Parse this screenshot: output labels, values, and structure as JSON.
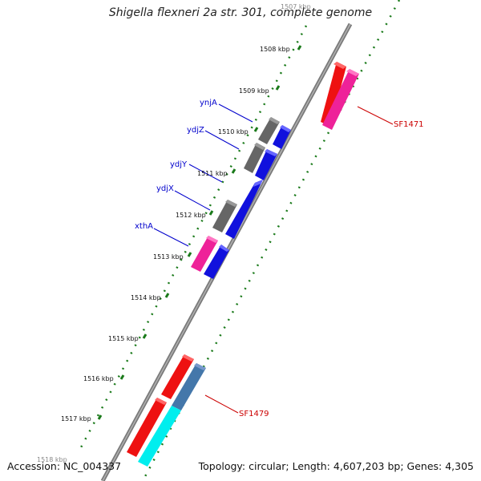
{
  "title": "Shigella flexneri 2a str. 301, complete genome",
  "footer": {
    "accession": "Accession: NC_004337",
    "summary": "Topology: circular; Length: 4,607,203 bp; Genes: 4,305"
  },
  "kbp_labels": [
    "1507 kbp",
    "1508 kbp",
    "1509 kbp",
    "1510 kbp",
    "1511 kbp",
    "1512 kbp",
    "1513 kbp",
    "1514 kbp",
    "1515 kbp",
    "1516 kbp",
    "1517 kbp",
    "1518 kbp"
  ],
  "gene_labels": [
    {
      "name": "ynjA",
      "color": "#0000cc"
    },
    {
      "name": "ydjZ",
      "color": "#0000cc"
    },
    {
      "name": "ydjY",
      "color": "#0000cc"
    },
    {
      "name": "ydjX",
      "color": "#0000cc"
    },
    {
      "name": "xthA",
      "color": "#0000cc"
    },
    {
      "name": "SF1471",
      "color": "#cc0000"
    },
    {
      "name": "SF1479",
      "color": "#cc0000"
    }
  ],
  "colors": {
    "backbone": "#808080",
    "tick": "#1a7a1a",
    "rRNA_red": "#ee1111",
    "pink": "#ee2299",
    "grey_gene": "#666666",
    "blue_gene": "#1111dd",
    "steel_blue": "#4477aa",
    "cyan": "#00eeee"
  }
}
